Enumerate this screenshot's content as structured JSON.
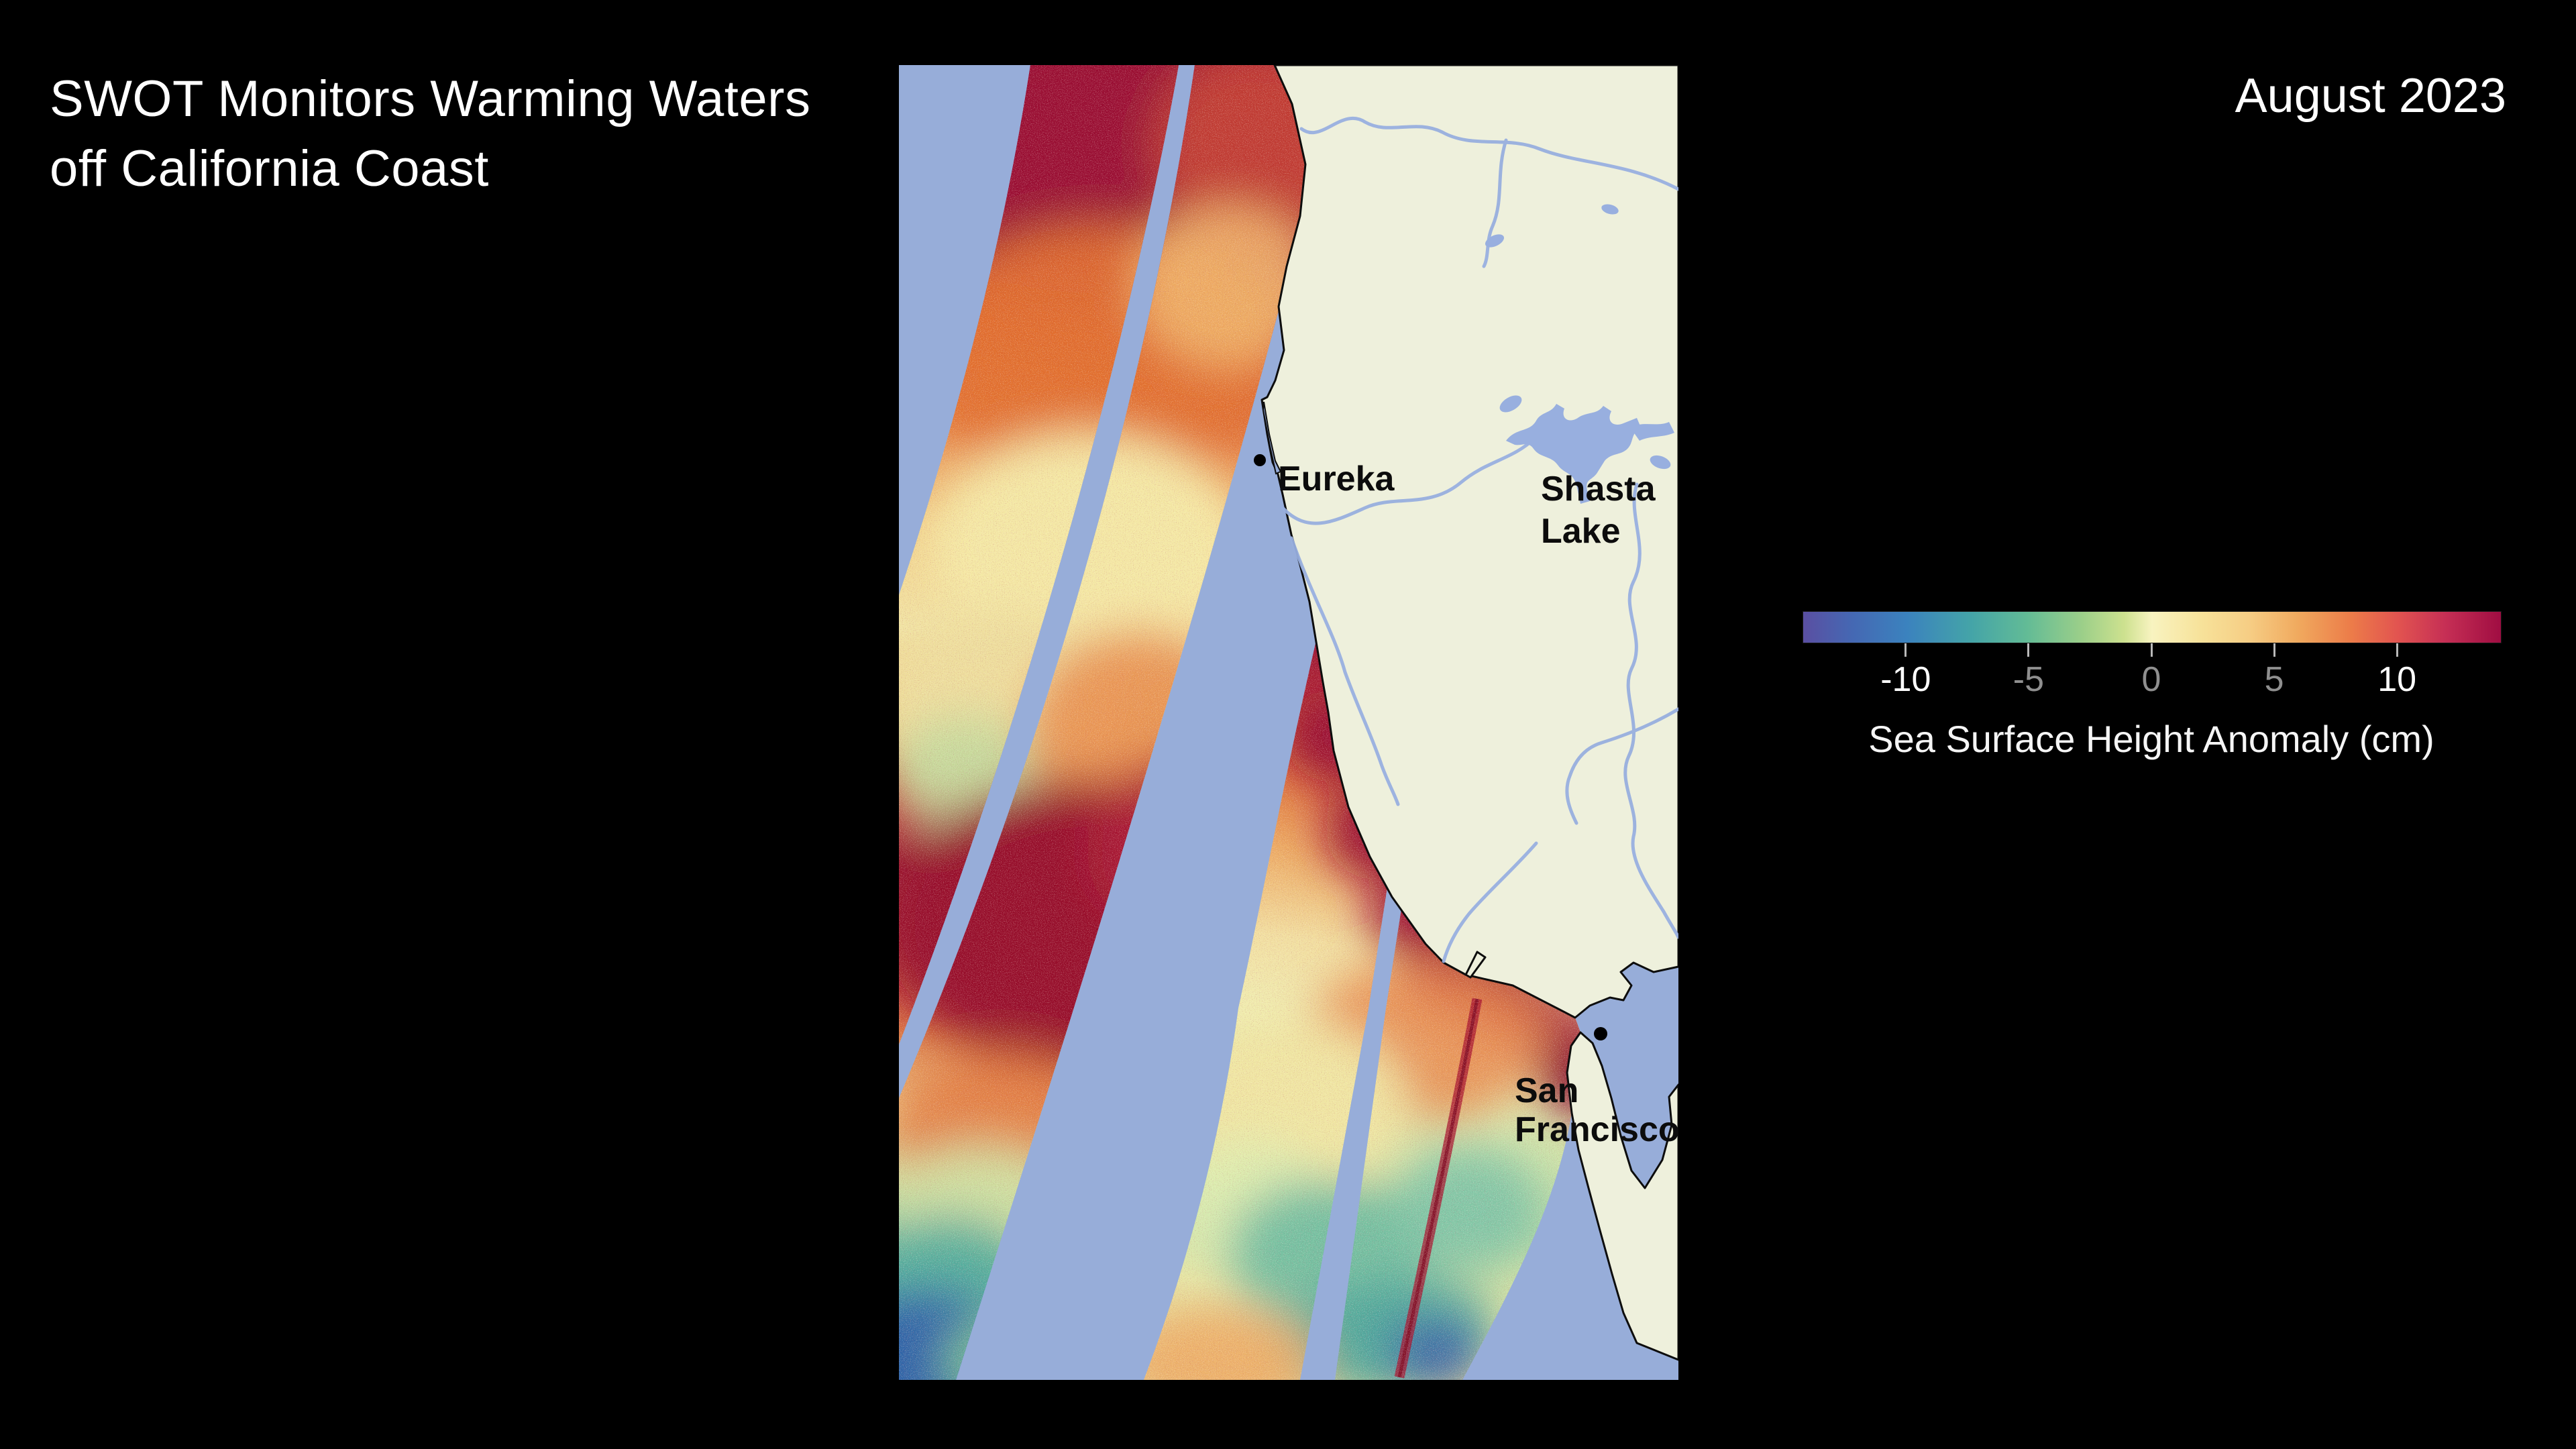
{
  "header": {
    "title_line1": "SWOT Monitors Warming Waters",
    "title_line2": "off California Coast",
    "date": "August 2023"
  },
  "legend": {
    "caption": "Sea Surface Height Anomaly (cm)",
    "value_min": -14.2,
    "value_max": 14.2,
    "ticks": [
      {
        "value": -10,
        "label": "-10",
        "color": "#ffffff"
      },
      {
        "value": -5,
        "label": "-5",
        "color": "#8f8f8f"
      },
      {
        "value": 0,
        "label": "0",
        "color": "#8f8f8f"
      },
      {
        "value": 5,
        "label": "5",
        "color": "#8f8f8f"
      },
      {
        "value": 10,
        "label": "10",
        "color": "#ffffff"
      }
    ],
    "gradient_stops": [
      [
        0.0,
        "#5a4fa2"
      ],
      [
        0.07,
        "#4568b3"
      ],
      [
        0.148,
        "#3b82be"
      ],
      [
        0.24,
        "#44a4a8"
      ],
      [
        0.32,
        "#62bb96"
      ],
      [
        0.4,
        "#9ccf89"
      ],
      [
        0.46,
        "#cde18f"
      ],
      [
        0.5,
        "#f8f3c0"
      ],
      [
        0.57,
        "#f7e29a"
      ],
      [
        0.64,
        "#f6cd84"
      ],
      [
        0.71,
        "#f0a95e"
      ],
      [
        0.785,
        "#ec7c49"
      ],
      [
        0.852,
        "#e25450"
      ],
      [
        0.92,
        "#c62f55"
      ],
      [
        1.0,
        "#a00d42"
      ]
    ]
  },
  "map": {
    "labels": {
      "eureka": "Eureka",
      "shasta_line1": "Shasta",
      "shasta_line2": "Lake",
      "sf_line1": "San",
      "sf_line2": "Francisco"
    },
    "palette": {
      "ocean": "#97add9",
      "land": "#eef0dc",
      "river": "#98afdf",
      "coastline": "#0d0d0d"
    }
  },
  "chart_data": {
    "type": "heatmap",
    "title": "SWOT Monitors Warming Waters off California Coast",
    "subtitle": "August 2023",
    "variable": "Sea Surface Height Anomaly",
    "units": "cm",
    "colorbar_range": [
      -14.2,
      14.2
    ],
    "colorbar_ticks": [
      -10,
      -5,
      0,
      5,
      10
    ],
    "legend_position": "right",
    "regions_labeled": [
      "Eureka",
      "Shasta Lake",
      "San Francisco"
    ],
    "swaths": [
      {
        "name": "western-pass",
        "anomaly_pattern": "strong positive (+8 to +14 cm) in north, decreasing to negative (-6 to -12 cm) at southern end"
      },
      {
        "name": "coastal-pass",
        "anomaly_pattern": "strong positive (+10 to +14 cm) hugging coast near Cape Mendocino and San Francisco, near zero to negative (-2 to -8 cm) offshore south"
      }
    ]
  }
}
